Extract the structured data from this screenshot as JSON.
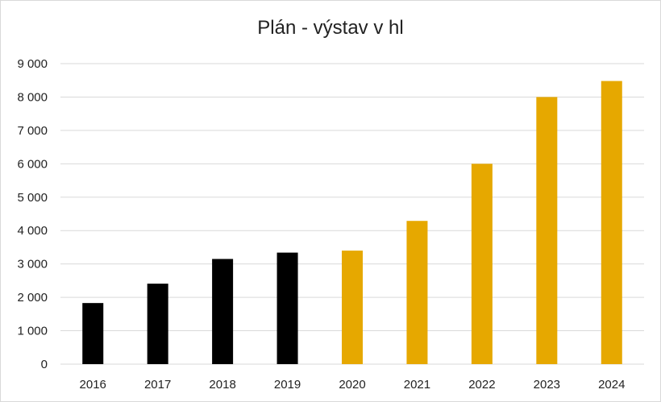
{
  "chart_data": {
    "type": "bar",
    "title": "Plán - výstav v hl",
    "xlabel": "",
    "ylabel": "",
    "categories": [
      "2016",
      "2017",
      "2018",
      "2019",
      "2020",
      "2021",
      "2022",
      "2023",
      "2024"
    ],
    "values": [
      1830,
      2410,
      3150,
      3340,
      3400,
      4290,
      6000,
      8000,
      8480
    ],
    "bar_colors": [
      "#000000",
      "#000000",
      "#000000",
      "#000000",
      "#E6A800",
      "#E6A800",
      "#E6A800",
      "#E6A800",
      "#E6A800"
    ],
    "ylim": [
      0,
      9000
    ],
    "yticks": [
      0,
      1000,
      2000,
      3000,
      4000,
      5000,
      6000,
      7000,
      8000,
      9000
    ],
    "ytick_labels": [
      "0",
      "1 000",
      "2 000",
      "3 000",
      "4 000",
      "5 000",
      "6 000",
      "7 000",
      "8 000",
      "9 000"
    ],
    "grid": true,
    "legend": "none",
    "gridline_color": "#d9d9d9"
  }
}
